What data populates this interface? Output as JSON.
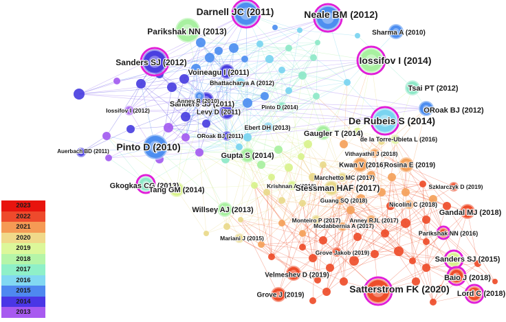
{
  "network": {
    "nodes": [
      {
        "label": "Darnell JC (2011)",
        "year": 2015,
        "size": 3,
        "burst": true
      },
      {
        "label": "Neale BM (2012)",
        "year": 2015,
        "size": 3,
        "burst": true
      },
      {
        "label": "Parikshak NN (2013)",
        "year": 2018,
        "size": 3,
        "burst": false
      },
      {
        "label": "Sharma A (2010)",
        "year": 2015,
        "size": 2,
        "burst": false
      },
      {
        "label": "Sanders SJ (2012)",
        "year": 2014,
        "size": 3,
        "burst": true
      },
      {
        "label": "Iossifov I (2014)",
        "year": 2018,
        "size": 3,
        "burst": true
      },
      {
        "label": "Voineagu I (2011)",
        "year": 2014,
        "size": 2,
        "burst": false
      },
      {
        "label": "Bhattacharya A (2012)",
        "year": 2016,
        "size": 1,
        "burst": false
      },
      {
        "label": "Tsai PT (2012)",
        "year": 2017,
        "size": 2,
        "burst": false
      },
      {
        "label": "Sanders SJ (2011)",
        "year": 2014,
        "size": 2,
        "burst": false
      },
      {
        "label": "Anney R (2010)",
        "year": 2015,
        "size": 1,
        "burst": false
      },
      {
        "label": "Iossifov I (2012)",
        "year": 2013,
        "size": 1,
        "burst": false
      },
      {
        "label": "Levy D (2011)",
        "year": 2014,
        "size": 2,
        "burst": false
      },
      {
        "label": "Pinto D (2014)",
        "year": 2017,
        "size": 1,
        "burst": false
      },
      {
        "label": "ORoak BJ (2012)",
        "year": 2015,
        "size": 2,
        "burst": false
      },
      {
        "label": "De Rubeis S (2014)",
        "year": 2016,
        "size": 3,
        "burst": true
      },
      {
        "label": "Ebert DH (2013)",
        "year": 2016,
        "size": 1,
        "burst": false
      },
      {
        "label": "Gaugler T (2014)",
        "year": 2018,
        "size": 2,
        "burst": false
      },
      {
        "label": "ORoak BJ (2011)",
        "year": 2014,
        "size": 1,
        "burst": false
      },
      {
        "label": "de la Torre-Ubieta L (2016)",
        "year": 2019,
        "size": 1,
        "burst": false
      },
      {
        "label": "Auerbach BD (2011)",
        "year": 2014,
        "size": 1,
        "burst": false
      },
      {
        "label": "Pinto D (2010)",
        "year": 2015,
        "size": 3,
        "burst": false
      },
      {
        "label": "Gupta S (2014)",
        "year": 2018,
        "size": 2,
        "burst": false
      },
      {
        "label": "Vithayathil J (2018)",
        "year": 2021,
        "size": 1,
        "burst": false
      },
      {
        "label": "Kwan V (2016)",
        "year": 2021,
        "size": 2,
        "burst": false
      },
      {
        "label": "Rosina E (2019)",
        "year": 2021,
        "size": 2,
        "burst": false
      },
      {
        "label": "Marchetto MC (2017)",
        "year": 2020,
        "size": 1,
        "burst": false
      },
      {
        "label": "Gkogkas CG (2013)",
        "year": 2017,
        "size": 2,
        "burst": true
      },
      {
        "label": "Krishnan A (2016)",
        "year": 2019,
        "size": 1,
        "burst": false
      },
      {
        "label": "Stessman HAF (2017)",
        "year": 2020,
        "size": 2,
        "burst": false
      },
      {
        "label": "Szklarczyk D (2019)",
        "year": 2022,
        "size": 1,
        "burst": false
      },
      {
        "label": "Tang GM (2014)",
        "year": 2019,
        "size": 2,
        "burst": false
      },
      {
        "label": "Guang SQ (2018)",
        "year": 2021,
        "size": 1,
        "burst": false
      },
      {
        "label": "Nicolini C (2018)",
        "year": 2021,
        "size": 1,
        "burst": false
      },
      {
        "label": "Willsey AJ (2013)",
        "year": 2018,
        "size": 2,
        "burst": false
      },
      {
        "label": "Gandal MJ (2018)",
        "year": 2022,
        "size": 2,
        "burst": false
      },
      {
        "label": "Monteiro P (2017)",
        "year": 2020,
        "size": 1,
        "burst": false
      },
      {
        "label": "Anney RJL (2017)",
        "year": 2021,
        "size": 1,
        "burst": false
      },
      {
        "label": "Modabbernia A (2017)",
        "year": 2021,
        "size": 1,
        "burst": false
      },
      {
        "label": "Parikshak NN (2016)",
        "year": 2022,
        "size": 1,
        "burst": true
      },
      {
        "label": "Mariani J (2015)",
        "year": 2020,
        "size": 1,
        "burst": false
      },
      {
        "label": "Grove Jakob (2019)",
        "year": 2022,
        "size": 1,
        "burst": false
      },
      {
        "label": "Sanders SJ (2015)",
        "year": 2019,
        "size": 2,
        "burst": true
      },
      {
        "label": "Velmeshev D (2019)",
        "year": 2022,
        "size": 2,
        "burst": false
      },
      {
        "label": "Baio J (2018)",
        "year": 2022,
        "size": 2,
        "burst": true
      },
      {
        "label": "Satterstrom FK (2020)",
        "year": 2022,
        "size": 3,
        "burst": true
      },
      {
        "label": "Grove J (2019)",
        "year": 2022,
        "size": 2,
        "burst": false
      },
      {
        "label": "Lord C (2018)",
        "year": 2022,
        "size": 2,
        "burst": true
      }
    ],
    "year_colors": {
      "2023": "#e41a1c",
      "2022": "#ee4d2a",
      "2021": "#f4a15a",
      "2020": "#e9d98a",
      "2019": "#d8f28c",
      "2018": "#a8f0a0",
      "2017": "#8ee8c8",
      "2016": "#7ad4f0",
      "2015": "#4d8ef0",
      "2014": "#4a3fe0",
      "2013": "#a35cf0"
    },
    "burst_ring_color": "#e020d8"
  },
  "legend": {
    "years": [
      "2023",
      "2022",
      "2021",
      "2020",
      "2019",
      "2018",
      "2017",
      "2016",
      "2015",
      "2014",
      "2013"
    ],
    "colors": [
      "#e8140e",
      "#ee4a2c",
      "#f59a55",
      "#f0d98a",
      "#dcf79a",
      "#b5f5a8",
      "#8ff0c8",
      "#82d8f2",
      "#4f88f0",
      "#4a36e6",
      "#a85af0"
    ]
  }
}
